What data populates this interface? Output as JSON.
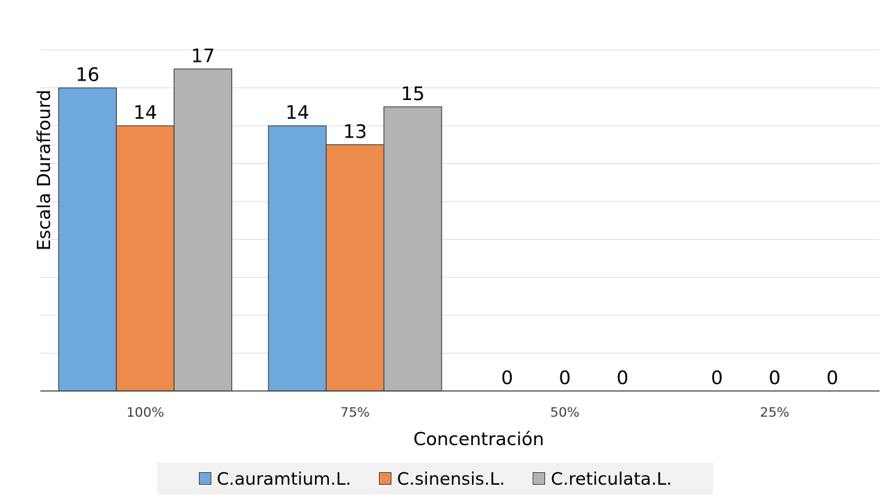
{
  "chart_data": {
    "type": "bar",
    "title": "",
    "xlabel": "Concentración",
    "ylabel": "Escala Duraffourd",
    "categories": [
      "100%",
      "75%",
      "50%",
      "25%"
    ],
    "series": [
      {
        "name": "C.auramtium.L.",
        "values": [
          16,
          14,
          0,
          0
        ],
        "color": "#6fa8dc"
      },
      {
        "name": "C.sinensis.L.",
        "values": [
          14,
          13,
          0,
          0
        ],
        "color": "#ec8b4c"
      },
      {
        "name": "C.reticulata.L.",
        "values": [
          17,
          15,
          0,
          0
        ],
        "color": "#b3b3b3"
      }
    ],
    "ylim": [
      0,
      18
    ],
    "ytick_step": 2,
    "show_y_tick_labels": false,
    "grid": true,
    "legend_position": "bottom",
    "data_labels": true
  }
}
